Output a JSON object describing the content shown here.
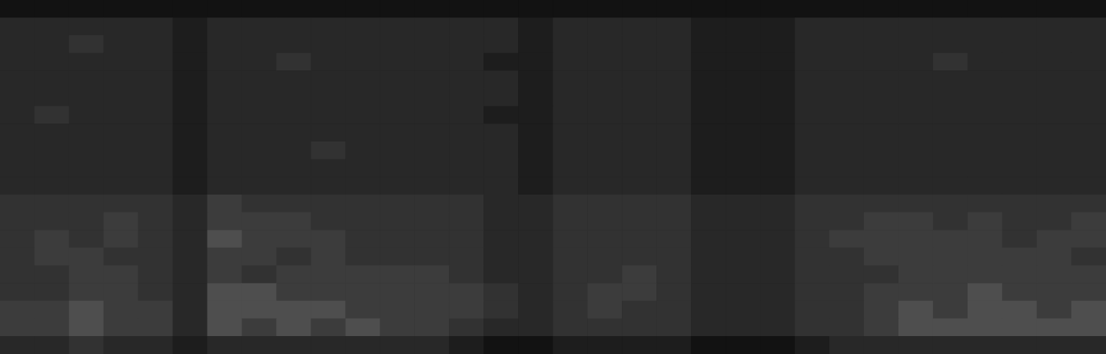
{
  "chart_data": {
    "type": "heatmap",
    "grid": false,
    "tick_labels": false,
    "zlim": [
      0,
      10
    ],
    "z": [
      [
        1,
        1,
        1,
        1,
        1,
        1,
        1,
        1,
        1,
        1,
        1,
        1,
        1,
        1,
        1,
        1,
        1,
        1,
        1,
        1,
        1,
        1,
        1,
        1,
        1,
        1,
        1,
        1,
        1,
        1,
        1,
        1
      ],
      [
        3,
        3,
        3,
        3,
        3,
        2,
        3,
        3,
        3,
        3,
        3,
        3,
        3,
        3,
        3,
        2,
        3,
        3,
        3,
        3,
        2,
        2,
        2,
        3,
        3,
        3,
        3,
        3,
        3,
        3,
        3,
        3
      ],
      [
        3,
        3,
        4,
        3,
        3,
        2,
        3,
        3,
        3,
        3,
        3,
        3,
        3,
        3,
        3,
        2,
        3,
        3,
        3,
        3,
        2,
        2,
        2,
        3,
        3,
        3,
        3,
        3,
        3,
        3,
        3,
        3
      ],
      [
        3,
        3,
        3,
        3,
        3,
        2,
        3,
        3,
        4,
        3,
        3,
        3,
        3,
        3,
        2,
        2,
        3,
        3,
        3,
        3,
        2,
        2,
        2,
        3,
        3,
        3,
        3,
        4,
        3,
        3,
        3,
        3
      ],
      [
        3,
        3,
        3,
        3,
        3,
        2,
        3,
        3,
        3,
        3,
        3,
        3,
        3,
        3,
        3,
        2,
        3,
        3,
        3,
        3,
        2,
        2,
        2,
        3,
        3,
        3,
        3,
        3,
        3,
        3,
        3,
        3
      ],
      [
        3,
        3,
        3,
        3,
        3,
        2,
        3,
        3,
        3,
        3,
        3,
        3,
        3,
        3,
        3,
        2,
        3,
        3,
        3,
        3,
        2,
        2,
        2,
        3,
        3,
        3,
        3,
        3,
        3,
        3,
        3,
        3
      ],
      [
        3,
        4,
        3,
        3,
        3,
        2,
        3,
        3,
        3,
        3,
        3,
        3,
        3,
        3,
        2,
        2,
        3,
        3,
        3,
        3,
        2,
        2,
        2,
        3,
        3,
        3,
        3,
        3,
        3,
        3,
        3,
        3
      ],
      [
        3,
        3,
        3,
        3,
        3,
        2,
        3,
        3,
        3,
        3,
        3,
        3,
        3,
        3,
        3,
        2,
        3,
        3,
        3,
        3,
        2,
        2,
        2,
        3,
        3,
        3,
        3,
        3,
        3,
        3,
        3,
        3
      ],
      [
        3,
        3,
        3,
        3,
        3,
        2,
        3,
        3,
        3,
        4,
        3,
        3,
        3,
        3,
        3,
        2,
        3,
        3,
        3,
        3,
        2,
        2,
        2,
        3,
        3,
        3,
        3,
        3,
        3,
        3,
        3,
        3
      ],
      [
        3,
        3,
        3,
        3,
        3,
        2,
        3,
        3,
        3,
        3,
        3,
        3,
        3,
        3,
        3,
        2,
        3,
        3,
        3,
        3,
        2,
        2,
        2,
        3,
        3,
        3,
        3,
        3,
        3,
        3,
        3,
        3
      ],
      [
        3,
        3,
        3,
        3,
        3,
        2,
        3,
        3,
        3,
        3,
        3,
        3,
        3,
        3,
        3,
        2,
        3,
        3,
        3,
        3,
        2,
        2,
        2,
        3,
        3,
        3,
        3,
        3,
        3,
        3,
        3,
        3
      ],
      [
        4,
        4,
        4,
        4,
        4,
        3,
        5,
        4,
        4,
        4,
        4,
        4,
        4,
        4,
        3,
        3,
        4,
        4,
        4,
        4,
        3,
        3,
        3,
        4,
        4,
        4,
        4,
        4,
        4,
        4,
        4,
        4
      ],
      [
        4,
        4,
        4,
        5,
        4,
        3,
        5,
        5,
        5,
        4,
        4,
        4,
        4,
        4,
        3,
        3,
        4,
        4,
        4,
        4,
        3,
        3,
        3,
        4,
        4,
        5,
        5,
        4,
        5,
        4,
        4,
        5
      ],
      [
        4,
        5,
        4,
        5,
        4,
        3,
        6,
        5,
        5,
        5,
        4,
        4,
        4,
        4,
        3,
        3,
        4,
        4,
        4,
        4,
        3,
        3,
        3,
        4,
        5,
        5,
        5,
        5,
        5,
        4,
        5,
        5
      ],
      [
        4,
        5,
        5,
        4,
        4,
        3,
        5,
        5,
        4,
        5,
        4,
        4,
        4,
        4,
        3,
        3,
        4,
        4,
        4,
        4,
        3,
        3,
        3,
        4,
        4,
        5,
        5,
        5,
        5,
        5,
        5,
        4
      ],
      [
        4,
        4,
        5,
        5,
        4,
        3,
        5,
        4,
        5,
        5,
        5,
        5,
        5,
        4,
        3,
        3,
        4,
        4,
        5,
        4,
        3,
        3,
        3,
        4,
        4,
        4,
        5,
        5,
        5,
        5,
        5,
        5
      ],
      [
        4,
        4,
        5,
        5,
        4,
        3,
        6,
        6,
        5,
        5,
        5,
        5,
        5,
        5,
        4,
        3,
        4,
        5,
        5,
        4,
        3,
        3,
        3,
        4,
        4,
        5,
        5,
        5,
        6,
        5,
        5,
        5
      ],
      [
        5,
        5,
        6,
        5,
        5,
        3,
        6,
        6,
        6,
        6,
        5,
        5,
        5,
        5,
        4,
        3,
        4,
        5,
        4,
        4,
        3,
        3,
        3,
        4,
        4,
        5,
        6,
        5,
        6,
        6,
        5,
        6
      ],
      [
        5,
        5,
        6,
        5,
        5,
        3,
        6,
        5,
        6,
        5,
        6,
        5,
        5,
        4,
        3,
        3,
        4,
        4,
        4,
        4,
        3,
        3,
        3,
        4,
        4,
        5,
        6,
        6,
        6,
        6,
        6,
        6
      ],
      [
        3,
        3,
        4,
        3,
        3,
        2,
        3,
        3,
        3,
        3,
        3,
        3,
        3,
        2,
        1,
        1,
        2,
        2,
        2,
        2,
        1,
        1,
        1,
        2,
        3,
        3,
        3,
        3,
        3,
        3,
        3,
        3
      ]
    ]
  }
}
